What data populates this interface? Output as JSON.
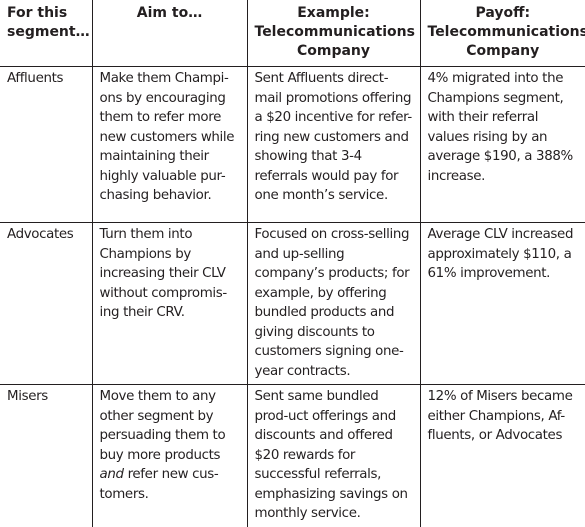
{
  "headers": [
    "For this segment…",
    "Aim to…",
    "Example: Telecommunications Company",
    "Payoff: Telecommunications Company"
  ],
  "rows": [
    {
      "segment": "Affluents",
      "aim": "Make them Champi-ons by encouraging them to refer more new customers while maintaining their highly valuable pur-chasing behavior.",
      "example": "Sent Affluents direct-mail promotions offering a $20 incentive for refer-ring new customers and showing that 3-4 referrals would pay for one month’s service.",
      "payoff": "4% migrated into the Champions segment, with their referral values rising by an average $190, a 388% increase."
    },
    {
      "segment": "Advocates",
      "aim": "Turn them into Champions by increasing their CLV without compromis-ing their CRV.",
      "example": "Focused on cross-selling and up-selling company’s products; for example, by offering bundled products and giving discounts to customers signing one-year contracts.",
      "payoff": "Average CLV increased approximately $110, a 61% improvement."
    },
    {
      "segment": "Misers",
      "aim_pre": "Move them to any other segment by persuading them to buy more products ",
      "aim_em": "and",
      "aim_post": " refer new cus-tomers.",
      "example": "Sent same bundled prod-uct offerings and discounts and offered $20 rewards for successful referrals, emphasizing savings on monthly service.",
      "payoff": "12% of Misers became either Champions, Af-fluents, or Advocates"
    }
  ]
}
